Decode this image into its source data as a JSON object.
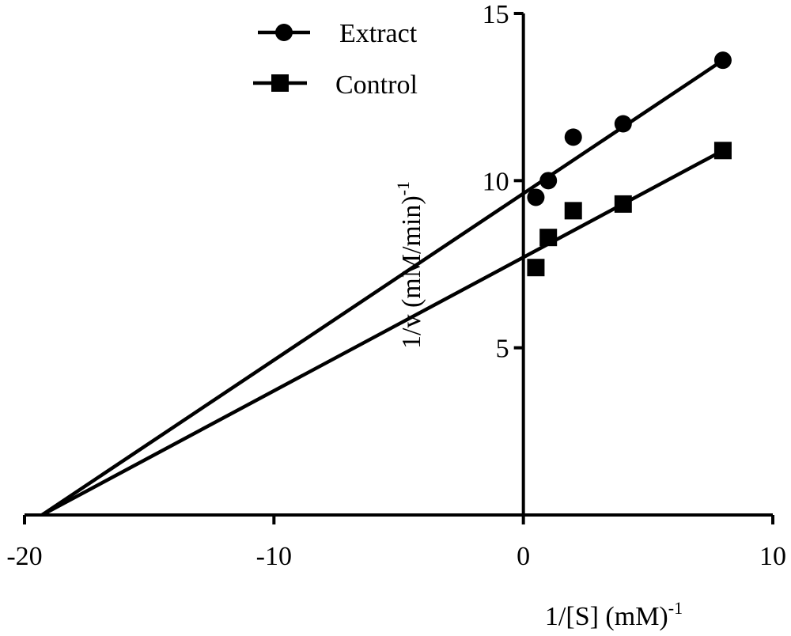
{
  "chart_data": {
    "type": "scatter",
    "title": "",
    "xlabel": "1/[S] (mM)",
    "xlabel_sup": "-1",
    "ylabel": "1/v (mM/min)",
    "ylabel_sup": "-1",
    "xlim": [
      -20,
      10
    ],
    "ylim": [
      0,
      15
    ],
    "xticks": [
      -20,
      -10,
      0,
      10
    ],
    "yticks": [
      5,
      10,
      15
    ],
    "grid": false,
    "legend_position": "top-center",
    "series": [
      {
        "name": "Extract",
        "marker": "circle",
        "x": [
          0.5,
          1,
          2,
          4,
          8
        ],
        "y": [
          9.5,
          10.0,
          11.3,
          11.7,
          13.6
        ],
        "fit": {
          "x_start": -19.3,
          "y_start": 0,
          "x_end": 8,
          "y_end": 13.6
        }
      },
      {
        "name": "Control",
        "marker": "square",
        "x": [
          0.5,
          1,
          2,
          4,
          8
        ],
        "y": [
          7.4,
          8.3,
          9.1,
          9.3,
          10.9
        ],
        "fit": {
          "x_start": -19.3,
          "y_start": 0,
          "x_end": 8,
          "y_end": 10.9
        }
      }
    ]
  }
}
